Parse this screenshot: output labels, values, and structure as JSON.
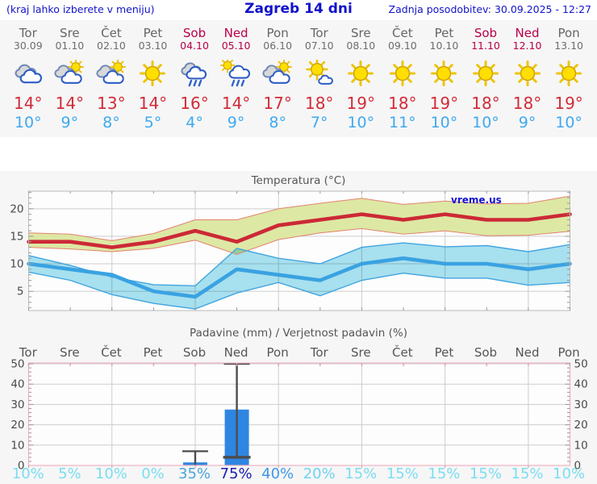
{
  "header": {
    "left_note": "(kraj lahko izberete v meniju)",
    "title": "Zagreb 14 dni",
    "updated": "Zadnja posodobitev: 30.09.2025 - 12:27"
  },
  "colors": {
    "header_blue": "#1212cc",
    "weekend_red": "#b80049",
    "weekday_gray": "#666666",
    "high_red": "#d22b38",
    "low_blue": "#3fa9f1",
    "panel_bg": "#f6f6f6",
    "plot_bg": "#fdfdfd",
    "grid": "#cdcdcd",
    "temp_border": "#b9b9b9",
    "precip_border": "#efb3c2",
    "bar_blue": "#2e86e2",
    "whisker_gray": "#4d4d4d"
  },
  "days": [
    {
      "name": "Tor",
      "date": "30.09",
      "weekend": false,
      "icon": "cloudy",
      "high": "14°",
      "low": "10°",
      "prob": "10%",
      "prob_color": "#79def2"
    },
    {
      "name": "Sre",
      "date": "01.10",
      "weekend": false,
      "icon": "partly",
      "high": "14°",
      "low": "9°",
      "prob": "5%",
      "prob_color": "#79def2"
    },
    {
      "name": "Čet",
      "date": "02.10",
      "weekend": false,
      "icon": "partly",
      "high": "13°",
      "low": "8°",
      "prob": "10%",
      "prob_color": "#79def2"
    },
    {
      "name": "Pet",
      "date": "03.10",
      "weekend": false,
      "icon": "sunny",
      "high": "14°",
      "low": "5°",
      "prob": "0%",
      "prob_color": "#79def2"
    },
    {
      "name": "Sob",
      "date": "04.10",
      "weekend": true,
      "icon": "rain",
      "high": "16°",
      "low": "4°",
      "prob": "35%",
      "prob_color": "#4aa4de"
    },
    {
      "name": "Ned",
      "date": "05.10",
      "weekend": true,
      "icon": "sun-rain",
      "high": "14°",
      "low": "9°",
      "prob": "75%",
      "prob_color": "#1b1cb5"
    },
    {
      "name": "Pon",
      "date": "06.10",
      "weekend": false,
      "icon": "partly",
      "high": "17°",
      "low": "8°",
      "prob": "40%",
      "prob_color": "#3e97ea"
    },
    {
      "name": "Tor",
      "date": "07.10",
      "weekend": false,
      "icon": "sun-cloud",
      "high": "18°",
      "low": "7°",
      "prob": "20%",
      "prob_color": "#6ed4f1"
    },
    {
      "name": "Sre",
      "date": "08.10",
      "weekend": false,
      "icon": "sunny",
      "high": "19°",
      "low": "10°",
      "prob": "15%",
      "prob_color": "#79def2"
    },
    {
      "name": "Čet",
      "date": "09.10",
      "weekend": false,
      "icon": "sunny",
      "high": "18°",
      "low": "11°",
      "prob": "15%",
      "prob_color": "#79def2"
    },
    {
      "name": "Pet",
      "date": "10.10",
      "weekend": false,
      "icon": "sunny",
      "high": "19°",
      "low": "10°",
      "prob": "15%",
      "prob_color": "#79def2"
    },
    {
      "name": "Sob",
      "date": "11.10",
      "weekend": true,
      "icon": "sunny",
      "high": "18°",
      "low": "10°",
      "prob": "15%",
      "prob_color": "#79def2"
    },
    {
      "name": "Ned",
      "date": "12.10",
      "weekend": true,
      "icon": "sunny",
      "high": "18°",
      "low": "9°",
      "prob": "15%",
      "prob_color": "#79def2"
    },
    {
      "name": "Pon",
      "date": "13.10",
      "weekend": false,
      "icon": "sunny",
      "high": "19°",
      "low": "10°",
      "prob": "10%",
      "prob_color": "#79def2"
    }
  ],
  "chart_data": [
    {
      "type": "area",
      "title": "Temperatura (°C)",
      "watermark": "vreme.us",
      "x_labels": [
        "Tor 30.09",
        "Sre 01.10",
        "Čet 02.10",
        "Pet 03.10",
        "Sob 04.10",
        "Ned 05.10",
        "Pon 06.10",
        "Tor 07.10",
        "Sre 08.10",
        "Čet 09.10",
        "Pet 10.10",
        "Sob 11.10",
        "Ned 12.10",
        "Pon 13.10"
      ],
      "ylim": [
        1.5,
        23.2
      ],
      "yticks": [
        5,
        10,
        15,
        20
      ],
      "grid": true,
      "band_colors": {
        "max": "#dde8a4",
        "min": "#a8e2f0"
      },
      "series": [
        {
          "name": "max_band_upper",
          "color": "#e4826e",
          "values": [
            15.6,
            15.4,
            14.2,
            15.5,
            18,
            18,
            20,
            21,
            21.9,
            20.8,
            21.4,
            20.9,
            21,
            22.3
          ]
        },
        {
          "name": "max",
          "color": "#cc2936",
          "values": [
            14,
            14,
            13,
            14,
            16,
            14,
            17,
            18,
            19,
            18,
            19,
            18,
            18,
            19
          ]
        },
        {
          "name": "max_band_lower",
          "color": "#e4826e",
          "values": [
            13,
            12.7,
            12.2,
            12.8,
            14.3,
            11.7,
            14.4,
            15.6,
            16.4,
            15.4,
            16,
            15.1,
            15.2,
            15.9
          ]
        },
        {
          "name": "min_band_upper",
          "color": "#41a4e0",
          "values": [
            11.5,
            9.7,
            7.6,
            6.2,
            6,
            12.8,
            11,
            10,
            13,
            13.8,
            13.1,
            13.3,
            12.2,
            13.5
          ]
        },
        {
          "name": "min",
          "color": "#3aa2e2",
          "values": [
            10,
            9,
            8,
            5,
            4,
            9,
            8,
            7,
            10,
            11,
            10,
            10,
            9,
            10
          ]
        },
        {
          "name": "min_band_lower",
          "color": "#41a4e0",
          "values": [
            8.5,
            7,
            4.4,
            2.8,
            1.8,
            4.7,
            6.6,
            4.2,
            7,
            8.3,
            7.4,
            7.4,
            6.1,
            6.6
          ]
        }
      ]
    },
    {
      "type": "bar",
      "title": "Padavine (mm) / Verjetnost padavin (%)",
      "ylim": [
        0,
        50.4
      ],
      "yticks": [
        0,
        10,
        20,
        30,
        40,
        50
      ],
      "grid": true,
      "bar_color": "#2e86e2",
      "bars": [
        {
          "day_index": 4,
          "day": "Sob 04.10",
          "value": 1.5,
          "whisker_low": 0,
          "whisker_high": 7
        },
        {
          "day_index": 5,
          "day": "Ned 05.10",
          "value": 27.5,
          "whisker_low": 4,
          "whisker_high": 50
        }
      ],
      "probabilities": [
        "10%",
        "5%",
        "10%",
        "0%",
        "35%",
        "75%",
        "40%",
        "20%",
        "15%",
        "15%",
        "15%",
        "15%",
        "15%",
        "10%"
      ]
    }
  ]
}
